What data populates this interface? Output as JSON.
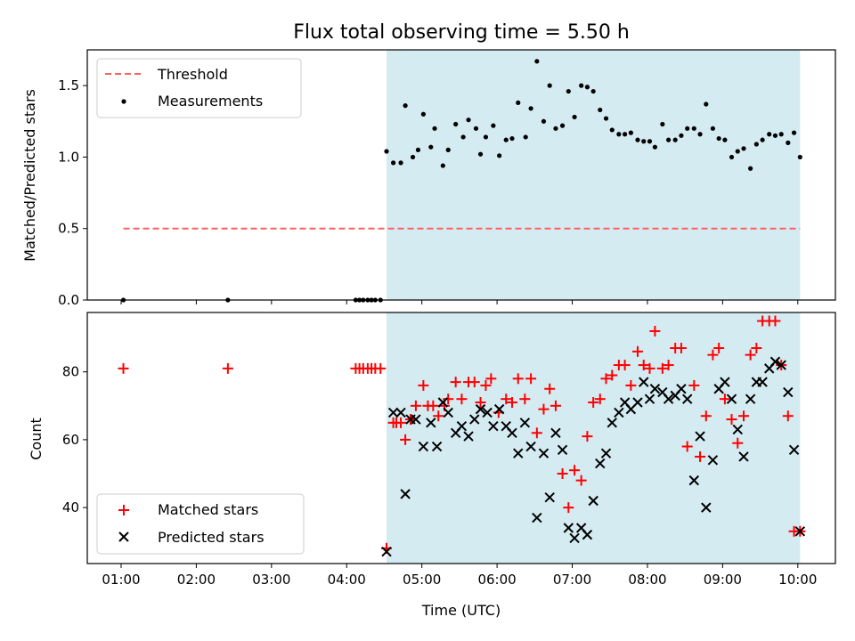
{
  "chart_data": [
    {
      "type": "scatter",
      "title": "Flux total observing time = 5.50 h",
      "xlabel": "",
      "ylabel": "Matched/Predicted stars",
      "xlim": [
        0.55,
        10.5
      ],
      "ylim": [
        0,
        1.75
      ],
      "yticks": [
        "0.0",
        "0.5",
        "1.0",
        "1.5"
      ],
      "ytick_values": [
        0,
        0.5,
        1.0,
        1.5
      ],
      "shaded_region": [
        4.53,
        10.03
      ],
      "shaded_color": "#add8e6",
      "legend_position": "upper left",
      "threshold": {
        "name": "Threshold",
        "value": 0.5,
        "x_range": [
          1.03,
          10.03
        ],
        "color": "#ff6060",
        "style": "dashed"
      },
      "series": [
        {
          "name": "Measurements",
          "color": "#000000",
          "x": [
            1.03,
            2.42,
            4.12,
            4.17,
            4.22,
            4.28,
            4.33,
            4.38,
            4.45,
            4.53,
            4.62,
            4.72,
            4.78,
            4.88,
            4.95,
            5.02,
            5.12,
            5.17,
            5.28,
            5.35,
            5.45,
            5.55,
            5.62,
            5.72,
            5.78,
            5.85,
            5.95,
            6.03,
            6.12,
            6.2,
            6.28,
            6.38,
            6.45,
            6.53,
            6.62,
            6.7,
            6.78,
            6.87,
            6.95,
            7.03,
            7.12,
            7.2,
            7.28,
            7.37,
            7.45,
            7.53,
            7.62,
            7.7,
            7.78,
            7.87,
            7.95,
            8.03,
            8.1,
            8.2,
            8.28,
            8.37,
            8.45,
            8.53,
            8.62,
            8.7,
            8.78,
            8.87,
            8.95,
            9.03,
            9.12,
            9.2,
            9.28,
            9.37,
            9.45,
            9.53,
            9.62,
            9.7,
            9.78,
            9.87,
            9.95,
            10.03
          ],
          "y": [
            0.0,
            0.0,
            0.0,
            0.0,
            0.0,
            0.0,
            0.0,
            0.0,
            0.0,
            1.04,
            0.96,
            0.96,
            1.36,
            1.0,
            1.05,
            1.3,
            1.07,
            1.2,
            0.94,
            1.05,
            1.23,
            1.14,
            1.26,
            1.2,
            1.02,
            1.14,
            1.22,
            1.01,
            1.12,
            1.13,
            1.38,
            1.14,
            1.34,
            1.67,
            1.25,
            1.5,
            1.2,
            1.22,
            1.46,
            1.28,
            1.5,
            1.49,
            1.46,
            1.33,
            1.27,
            1.19,
            1.16,
            1.16,
            1.17,
            1.12,
            1.11,
            1.11,
            1.07,
            1.23,
            1.12,
            1.12,
            1.15,
            1.2,
            1.2,
            1.16,
            1.37,
            1.2,
            1.13,
            1.12,
            1.0,
            1.04,
            1.06,
            0.92,
            1.09,
            1.12,
            1.16,
            1.15,
            1.16,
            1.1,
            1.17,
            1.0
          ]
        }
      ]
    },
    {
      "type": "scatter",
      "title": "",
      "xlabel": "Time (UTC)",
      "ylabel": "Count",
      "xlim": [
        0.55,
        10.5
      ],
      "ylim": [
        23.5,
        97.5
      ],
      "xticks": [
        "01:00",
        "02:00",
        "03:00",
        "04:00",
        "05:00",
        "06:00",
        "07:00",
        "08:00",
        "09:00",
        "10:00"
      ],
      "xtick_values": [
        1,
        2,
        3,
        4,
        5,
        6,
        7,
        8,
        9,
        10
      ],
      "yticks": [
        "40",
        "60",
        "80"
      ],
      "ytick_values": [
        40,
        60,
        80
      ],
      "shaded_region": [
        4.53,
        10.03
      ],
      "shaded_color": "#add8e6",
      "legend_position": "lower left",
      "series": [
        {
          "name": "Matched stars",
          "marker": "+",
          "color": "#ff0000",
          "x": [
            1.03,
            2.42,
            4.12,
            4.17,
            4.22,
            4.28,
            4.33,
            4.38,
            4.45,
            4.53,
            4.62,
            4.66,
            4.72,
            4.78,
            4.85,
            4.92,
            5.02,
            5.08,
            5.15,
            5.22,
            5.3,
            5.35,
            5.45,
            5.53,
            5.62,
            5.7,
            5.78,
            5.85,
            5.92,
            6.02,
            6.12,
            6.2,
            6.28,
            6.37,
            6.45,
            6.53,
            6.62,
            6.7,
            6.78,
            6.87,
            6.95,
            7.03,
            7.12,
            7.2,
            7.28,
            7.37,
            7.45,
            7.53,
            7.62,
            7.7,
            7.78,
            7.87,
            7.95,
            8.03,
            8.1,
            8.2,
            8.28,
            8.37,
            8.45,
            8.53,
            8.62,
            8.7,
            8.78,
            8.87,
            8.95,
            9.03,
            9.12,
            9.2,
            9.28,
            9.37,
            9.45,
            9.53,
            9.62,
            9.7,
            9.78,
            9.87,
            9.95,
            10.03
          ],
          "y": [
            81,
            81,
            81,
            81,
            81,
            81,
            81,
            81,
            81,
            28,
            65,
            65,
            65,
            60,
            66,
            70,
            76,
            70,
            70,
            67,
            70,
            72,
            77,
            72,
            77,
            77,
            71,
            76,
            78,
            68,
            72,
            71,
            78,
            72,
            78,
            62,
            69,
            75,
            70,
            50,
            40,
            51,
            48,
            61,
            71,
            72,
            78,
            79,
            82,
            82,
            76,
            86,
            82,
            81,
            92,
            81,
            82,
            87,
            87,
            58,
            76,
            55,
            67,
            85,
            87,
            72,
            66,
            59,
            67,
            85,
            87,
            95,
            95,
            95,
            82,
            67,
            33,
            33
          ]
        },
        {
          "name": "Predicted stars",
          "marker": "x",
          "color": "#000000",
          "x": [
            4.53,
            4.62,
            4.72,
            4.78,
            4.85,
            4.92,
            5.02,
            5.12,
            5.2,
            5.28,
            5.35,
            5.45,
            5.53,
            5.62,
            5.7,
            5.78,
            5.87,
            5.95,
            6.03,
            6.12,
            6.2,
            6.28,
            6.37,
            6.45,
            6.53,
            6.62,
            6.7,
            6.78,
            6.87,
            6.95,
            7.03,
            7.12,
            7.2,
            7.28,
            7.37,
            7.45,
            7.53,
            7.62,
            7.7,
            7.78,
            7.87,
            7.95,
            8.03,
            8.1,
            8.2,
            8.28,
            8.37,
            8.45,
            8.53,
            8.62,
            8.7,
            8.78,
            8.87,
            8.95,
            9.03,
            9.12,
            9.2,
            9.28,
            9.37,
            9.45,
            9.53,
            9.62,
            9.7,
            9.78,
            9.87,
            9.95,
            10.03
          ],
          "y": [
            27,
            68,
            68,
            44,
            66,
            66,
            58,
            65,
            58,
            71,
            68,
            62,
            64,
            61,
            66,
            69,
            68,
            64,
            69,
            64,
            62,
            56,
            65,
            58,
            37,
            56,
            43,
            62,
            57,
            34,
            31,
            34,
            32,
            42,
            53,
            56,
            65,
            68,
            71,
            69,
            71,
            77,
            72,
            75,
            74,
            72,
            73,
            75,
            72,
            48,
            61,
            40,
            54,
            75,
            77,
            72,
            63,
            55,
            72,
            77,
            77,
            81,
            83,
            82,
            74,
            57,
            33
          ]
        }
      ]
    }
  ]
}
